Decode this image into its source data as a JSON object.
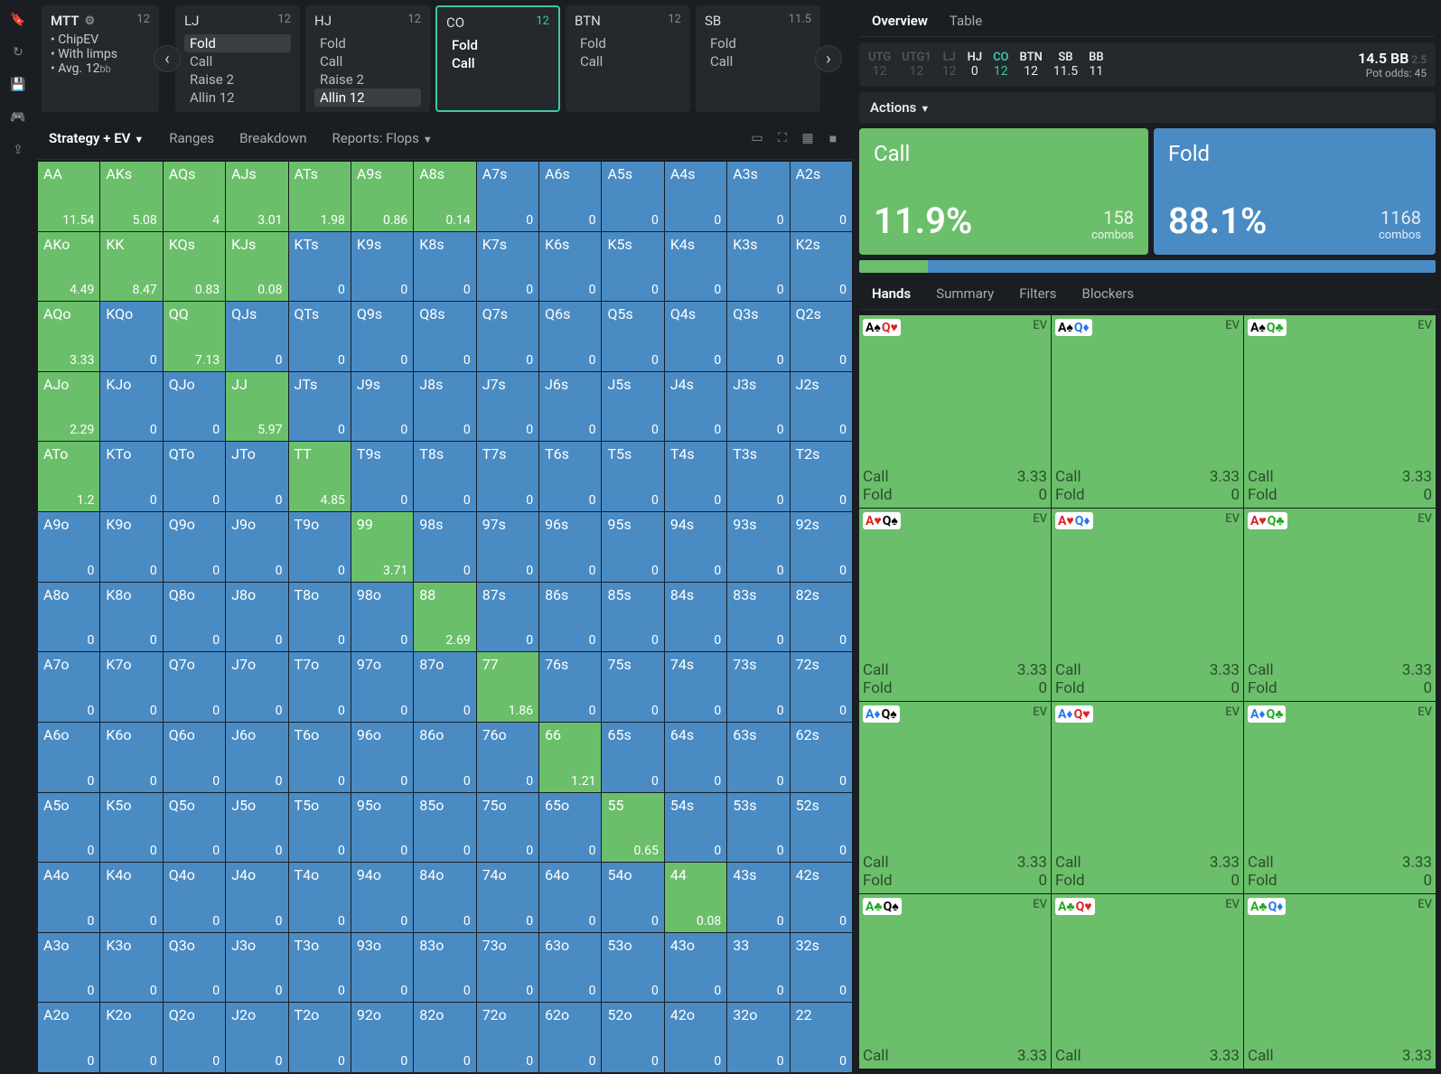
{
  "sidebar_icons": [
    "bookmark",
    "history",
    "save",
    "gamepad",
    "upload"
  ],
  "mtt": {
    "title": "MTT",
    "num": "12",
    "items": [
      "ChipEV",
      "With limps",
      "Avg. 12"
    ],
    "bb_suffix": "bb"
  },
  "positions": [
    {
      "name": "LJ",
      "num": "12",
      "actions": [
        {
          "t": "Fold",
          "hl": true
        },
        {
          "t": "Call"
        },
        {
          "t": "Raise 2"
        },
        {
          "t": "Allin 12"
        }
      ]
    },
    {
      "name": "HJ",
      "num": "12",
      "actions": [
        {
          "t": "Fold"
        },
        {
          "t": "Call"
        },
        {
          "t": "Raise 2"
        },
        {
          "t": "Allin 12",
          "hl": true
        }
      ]
    },
    {
      "name": "CO",
      "num": "12",
      "selected": true,
      "actions": [
        {
          "t": "Fold",
          "sel": true
        },
        {
          "t": "Call",
          "sel": true
        }
      ]
    },
    {
      "name": "BTN",
      "num": "12",
      "actions": [
        {
          "t": "Fold"
        },
        {
          "t": "Call"
        }
      ]
    },
    {
      "name": "SB",
      "num": "11.5",
      "actions": [
        {
          "t": "Fold"
        },
        {
          "t": "Call"
        }
      ]
    }
  ],
  "tabs": {
    "strategy": "Strategy + EV",
    "ranges": "Ranges",
    "breakdown": "Breakdown",
    "reports": "Reports: Flops"
  },
  "ranks": [
    "A",
    "K",
    "Q",
    "J",
    "T",
    "9",
    "8",
    "7",
    "6",
    "5",
    "4",
    "3",
    "2"
  ],
  "ev_overrides": {
    "AA": "11.54",
    "AKs": "5.08",
    "AQs": "4",
    "AJs": "3.01",
    "ATs": "1.98",
    "A9s": "0.86",
    "A8s": "0.14",
    "AKo": "4.49",
    "KK": "8.47",
    "KQs": "0.83",
    "KJs": "0.08",
    "AQo": "3.33",
    "QQ": "7.13",
    "AJo": "2.29",
    "JJ": "5.97",
    "ATo": "1.2",
    "TT": "4.85",
    "99": "3.71",
    "88": "2.69",
    "77": "1.86",
    "66": "1.21",
    "55": "0.65",
    "44": "0.08"
  },
  "green_cells": [
    "AA",
    "AKs",
    "AQs",
    "AJs",
    "ATs",
    "A9s",
    "A8s",
    "AKo",
    "KK",
    "KQs",
    "KJs",
    "AQo",
    "QQ",
    "AJo",
    "JJ",
    "ATo",
    "TT",
    "99",
    "88",
    "77",
    "66",
    "55",
    "44"
  ],
  "overview": {
    "tab1": "Overview",
    "tab2": "Table"
  },
  "pos_summary": [
    {
      "n": "UTG",
      "v": "12",
      "dim": true
    },
    {
      "n": "UTG1",
      "v": "12",
      "dim": true
    },
    {
      "n": "LJ",
      "v": "12",
      "dim": true
    },
    {
      "n": "HJ",
      "v": "0"
    },
    {
      "n": "CO",
      "v": "12",
      "co": true
    },
    {
      "n": "BTN",
      "v": "12"
    },
    {
      "n": "SB",
      "v": "11.5"
    },
    {
      "n": "BB",
      "v": "11"
    }
  ],
  "bb_info": {
    "main": "14.5 BB",
    "sub": "2.5",
    "pot": "Pot odds:",
    "potv": "45"
  },
  "actions_label": "Actions",
  "action_call": {
    "title": "Call",
    "pct": "11.9%",
    "combos": "158",
    "combos_lbl": "combos"
  },
  "action_fold": {
    "title": "Fold",
    "pct": "88.1%",
    "combos": "1168",
    "combos_lbl": "combos"
  },
  "call_width": "11.9%",
  "hands_tabs": {
    "hands": "Hands",
    "summary": "Summary",
    "filters": "Filters",
    "blockers": "Blockers"
  },
  "combo_rows": [
    [
      {
        "c1": "A",
        "s1": "s",
        "c2": "Q",
        "s2": "h"
      },
      {
        "c1": "A",
        "s1": "s",
        "c2": "Q",
        "s2": "d"
      },
      {
        "c1": "A",
        "s1": "s",
        "c2": "Q",
        "s2": "c"
      }
    ],
    [
      {
        "c1": "A",
        "s1": "h",
        "c2": "Q",
        "s2": "s"
      },
      {
        "c1": "A",
        "s1": "h",
        "c2": "Q",
        "s2": "d"
      },
      {
        "c1": "A",
        "s1": "h",
        "c2": "Q",
        "s2": "c"
      }
    ],
    [
      {
        "c1": "A",
        "s1": "d",
        "c2": "Q",
        "s2": "s"
      },
      {
        "c1": "A",
        "s1": "d",
        "c2": "Q",
        "s2": "h"
      },
      {
        "c1": "A",
        "s1": "d",
        "c2": "Q",
        "s2": "c"
      }
    ],
    [
      {
        "c1": "A",
        "s1": "c",
        "c2": "Q",
        "s2": "s"
      },
      {
        "c1": "A",
        "s1": "c",
        "c2": "Q",
        "s2": "h"
      },
      {
        "c1": "A",
        "s1": "c",
        "c2": "Q",
        "s2": "d"
      }
    ]
  ],
  "combo_ev": "EV",
  "combo_call": "Call",
  "combo_call_v": "3.33",
  "combo_fold": "Fold",
  "combo_fold_v": "0",
  "suit_glyph": {
    "s": "♠",
    "h": "♥",
    "d": "♦",
    "c": "♣"
  }
}
